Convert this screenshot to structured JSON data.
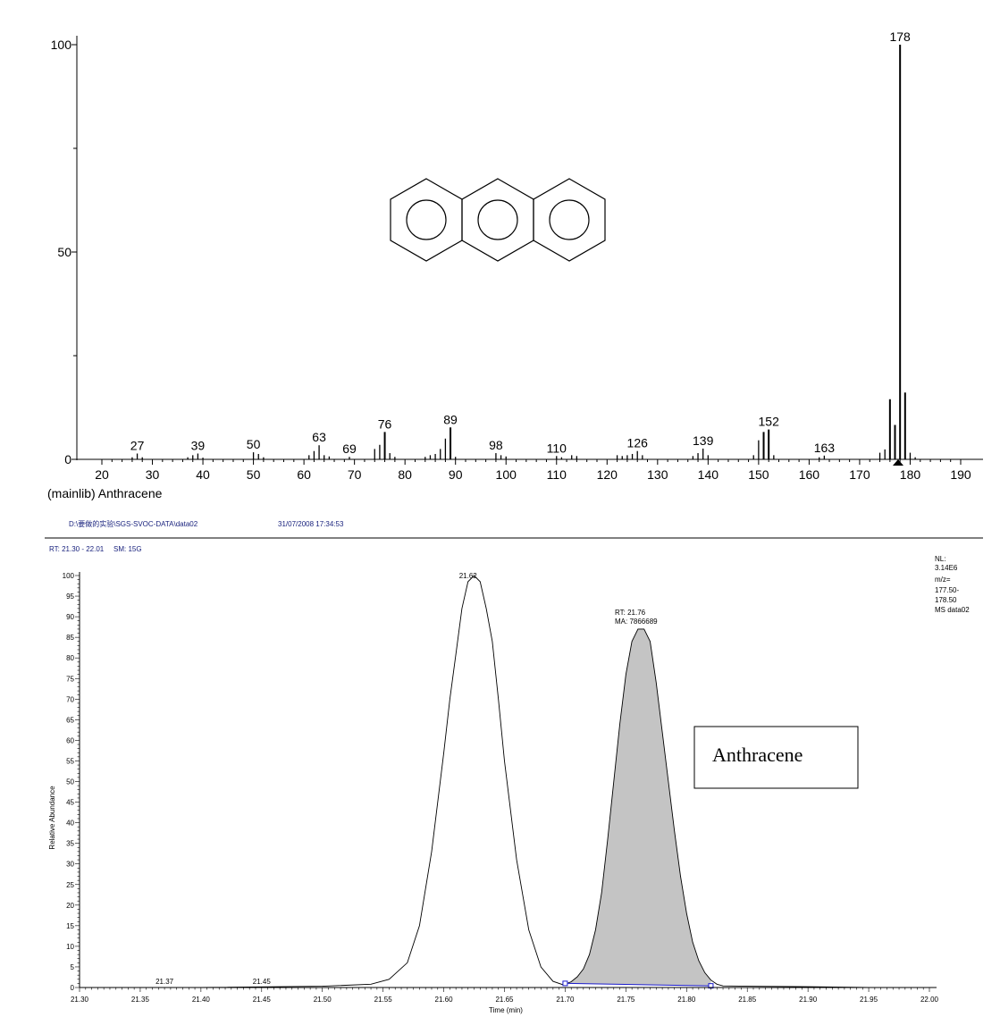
{
  "header": {
    "file_path": "D:\\要做的实验\\SGS-SVOC-DATA\\data02",
    "datetime": "31/07/2008 17:34:53",
    "rt_range": "RT: 21.30 - 22.01",
    "smoothing": "SM: 15G"
  },
  "info_box": {
    "lines": [
      "NL:",
      "3.14E6",
      "m/z=",
      "177.50-",
      "178.50",
      "MS data02"
    ]
  },
  "compound_label": "Anthracene",
  "chart_data": [
    {
      "type": "bar",
      "title": "",
      "caption": "(mainlib) Anthracene",
      "xlabel": "",
      "ylabel": "",
      "xlim": [
        16,
        194
      ],
      "ylim": [
        0,
        100
      ],
      "xticks": [
        20,
        30,
        40,
        50,
        60,
        70,
        80,
        90,
        100,
        110,
        120,
        130,
        140,
        150,
        160,
        170,
        180,
        190
      ],
      "yticks": [
        0,
        50,
        100
      ],
      "peaks": [
        {
          "mz": 26,
          "value": 0.5
        },
        {
          "mz": 27,
          "value": 1.4
        },
        {
          "mz": 28,
          "value": 0.5
        },
        {
          "mz": 37,
          "value": 0.5
        },
        {
          "mz": 38,
          "value": 1.0
        },
        {
          "mz": 39,
          "value": 1.4
        },
        {
          "mz": 40,
          "value": 0.4
        },
        {
          "mz": 50,
          "value": 1.7
        },
        {
          "mz": 51,
          "value": 1.3
        },
        {
          "mz": 52,
          "value": 0.5
        },
        {
          "mz": 61,
          "value": 1.0
        },
        {
          "mz": 62,
          "value": 2.0
        },
        {
          "mz": 63,
          "value": 3.4
        },
        {
          "mz": 64,
          "value": 1.0
        },
        {
          "mz": 65,
          "value": 0.7
        },
        {
          "mz": 69,
          "value": 0.6
        },
        {
          "mz": 74,
          "value": 2.5
        },
        {
          "mz": 75,
          "value": 3.5
        },
        {
          "mz": 76,
          "value": 6.6
        },
        {
          "mz": 77,
          "value": 1.5
        },
        {
          "mz": 78,
          "value": 0.6
        },
        {
          "mz": 84,
          "value": 0.6
        },
        {
          "mz": 85,
          "value": 1.0
        },
        {
          "mz": 86,
          "value": 1.3
        },
        {
          "mz": 87,
          "value": 2.5
        },
        {
          "mz": 88,
          "value": 5.0
        },
        {
          "mz": 89,
          "value": 7.7
        },
        {
          "mz": 90,
          "value": 0.6
        },
        {
          "mz": 98,
          "value": 1.5
        },
        {
          "mz": 99,
          "value": 1.0
        },
        {
          "mz": 100,
          "value": 0.7
        },
        {
          "mz": 110,
          "value": 0.8
        },
        {
          "mz": 111,
          "value": 0.5
        },
        {
          "mz": 113,
          "value": 1.0
        },
        {
          "mz": 114,
          "value": 0.8
        },
        {
          "mz": 122,
          "value": 1.0
        },
        {
          "mz": 123,
          "value": 0.8
        },
        {
          "mz": 124,
          "value": 1.0
        },
        {
          "mz": 125,
          "value": 1.3
        },
        {
          "mz": 126,
          "value": 2.0
        },
        {
          "mz": 127,
          "value": 1.0
        },
        {
          "mz": 137,
          "value": 0.8
        },
        {
          "mz": 138,
          "value": 1.5
        },
        {
          "mz": 139,
          "value": 2.6
        },
        {
          "mz": 140,
          "value": 1.0
        },
        {
          "mz": 149,
          "value": 1.0
        },
        {
          "mz": 150,
          "value": 4.6
        },
        {
          "mz": 151,
          "value": 6.6
        },
        {
          "mz": 152,
          "value": 7.2
        },
        {
          "mz": 153,
          "value": 1.0
        },
        {
          "mz": 162,
          "value": 0.5
        },
        {
          "mz": 163,
          "value": 0.9
        },
        {
          "mz": 174,
          "value": 1.6
        },
        {
          "mz": 175,
          "value": 2.4
        },
        {
          "mz": 176,
          "value": 14.5
        },
        {
          "mz": 177,
          "value": 8.3
        },
        {
          "mz": 178,
          "value": 100
        },
        {
          "mz": 179,
          "value": 16.1
        },
        {
          "mz": 180,
          "value": 1.6
        },
        {
          "mz": 181,
          "value": 0.5
        }
      ],
      "labeled_peaks": [
        27,
        39,
        50,
        63,
        69,
        76,
        89,
        98,
        110,
        126,
        139,
        152,
        163,
        178
      ]
    },
    {
      "type": "line",
      "title": "",
      "xlabel": "Time (min)",
      "ylabel": "Relative Abundance",
      "xlim": [
        21.3,
        22.0
      ],
      "ylim": [
        0,
        100
      ],
      "xticks": [
        21.3,
        21.35,
        21.4,
        21.45,
        21.5,
        21.55,
        21.6,
        21.65,
        21.7,
        21.75,
        21.8,
        21.85,
        21.9,
        21.95,
        22.0
      ],
      "yticks": [
        0,
        5,
        10,
        15,
        20,
        25,
        30,
        35,
        40,
        45,
        50,
        55,
        60,
        65,
        70,
        75,
        80,
        85,
        90,
        95,
        100
      ],
      "series": [
        {
          "x": [
            21.3,
            21.4,
            21.5,
            21.54,
            21.555,
            21.57,
            21.58,
            21.59,
            21.6,
            21.605,
            21.61,
            21.615,
            21.62,
            21.625,
            21.63,
            21.635,
            21.64,
            21.645,
            21.65,
            21.66,
            21.67,
            21.68,
            21.69,
            21.7
          ],
          "values": [
            0,
            0,
            0.3,
            0.8,
            2,
            6,
            15,
            33,
            57,
            70,
            81,
            92,
            98.5,
            100,
            98.5,
            92,
            84,
            70,
            55,
            31,
            14,
            5,
            1.5,
            0.5
          ]
        },
        {
          "x": [
            21.7,
            21.705,
            21.71,
            21.715,
            21.72,
            21.725,
            21.73,
            21.735,
            21.74,
            21.745,
            21.75,
            21.755,
            21.76,
            21.765,
            21.77,
            21.775,
            21.78,
            21.785,
            21.79,
            21.795,
            21.8,
            21.805,
            21.81,
            21.815,
            21.82,
            21.825,
            21.83,
            21.85,
            21.9,
            21.95,
            22.0
          ],
          "values": [
            0.8,
            1.4,
            2.6,
            4.5,
            8,
            14,
            23,
            36,
            50,
            64,
            76,
            84,
            87,
            87,
            84,
            74,
            62,
            50,
            38,
            27,
            18,
            11,
            6.5,
            3.6,
            1.8,
            0.8,
            0.4,
            0.3,
            0.2,
            0,
            0
          ]
        }
      ],
      "peak_labels": [
        {
          "x": 21.62,
          "text": "21.62"
        },
        {
          "x": 21.37,
          "text": "21.37"
        },
        {
          "x": 21.45,
          "text": "21.45"
        }
      ],
      "integrated_peak": {
        "rt_text": "RT: 21.76",
        "ma_text": "MA: 7866689",
        "x_start": 21.7,
        "x_end": 21.82,
        "baseline_start": 1.0,
        "baseline_end": 0.4
      },
      "fill_color": "#c4c4c4",
      "baseline_color": "#1a1acc"
    }
  ]
}
